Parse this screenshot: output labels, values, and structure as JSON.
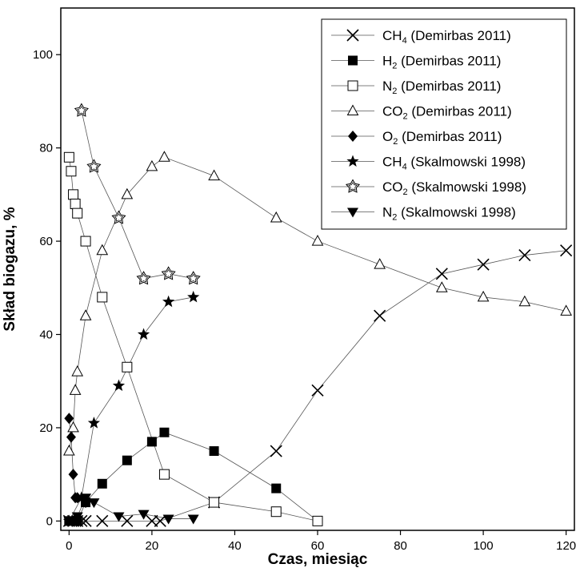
{
  "chart_data": {
    "type": "line",
    "xlabel": "Czas, miesiąc",
    "ylabel": "Skład biogazu, %",
    "xlim": [
      -2,
      122
    ],
    "ylim": [
      -2,
      110
    ],
    "x_ticks": [
      0,
      20,
      40,
      60,
      80,
      100,
      120
    ],
    "y_ticks": [
      0,
      20,
      40,
      60,
      80,
      100
    ],
    "x_tick_labels": [
      "0",
      "20",
      "40",
      "60",
      "80",
      "100",
      "120"
    ],
    "y_tick_labels": [
      "0",
      "20",
      "40",
      "60",
      "80",
      "100"
    ],
    "grid": false,
    "legend_position": "top-right",
    "series": [
      {
        "name": "CH4 (Demirbas 2011)",
        "gas": "CH",
        "sub": "4",
        "source": " (Demirbas 2011)",
        "marker": "x",
        "points": [
          [
            0,
            0
          ],
          [
            1,
            0
          ],
          [
            2,
            0
          ],
          [
            3,
            0
          ],
          [
            4,
            0
          ],
          [
            8,
            0
          ],
          [
            14,
            0
          ],
          [
            20,
            0
          ],
          [
            22,
            0
          ],
          [
            35,
            4
          ],
          [
            50,
            15
          ],
          [
            60,
            28
          ],
          [
            75,
            44
          ],
          [
            90,
            53
          ],
          [
            100,
            55
          ],
          [
            110,
            57
          ],
          [
            120,
            58
          ]
        ]
      },
      {
        "name": "H2 (Demirbas 2011)",
        "gas": "H",
        "sub": "2",
        "source": " (Demirbas 2011)",
        "marker": "square-filled",
        "points": [
          [
            0,
            0
          ],
          [
            2,
            0
          ],
          [
            4,
            4
          ],
          [
            8,
            8
          ],
          [
            14,
            13
          ],
          [
            20,
            17
          ],
          [
            23,
            19
          ],
          [
            35,
            15
          ],
          [
            50,
            7
          ],
          [
            60,
            0
          ]
        ]
      },
      {
        "name": "N2 (Demirbas 2011)",
        "gas": "N",
        "sub": "2",
        "source": " (Demirbas 2011)",
        "marker": "square-open",
        "points": [
          [
            0,
            78
          ],
          [
            0.5,
            75
          ],
          [
            1,
            70
          ],
          [
            1.5,
            68
          ],
          [
            2,
            66
          ],
          [
            4,
            60
          ],
          [
            8,
            48
          ],
          [
            14,
            33
          ],
          [
            23,
            10
          ],
          [
            35,
            4
          ],
          [
            50,
            2
          ],
          [
            60,
            0
          ]
        ]
      },
      {
        "name": "CO2 (Demirbas 2011)",
        "gas": "CO",
        "sub": "2",
        "source": " (Demirbas 2011)",
        "marker": "triangle-open",
        "points": [
          [
            0,
            15
          ],
          [
            1,
            20
          ],
          [
            1.5,
            28
          ],
          [
            2,
            32
          ],
          [
            4,
            44
          ],
          [
            8,
            58
          ],
          [
            14,
            70
          ],
          [
            20,
            76
          ],
          [
            23,
            78
          ],
          [
            35,
            74
          ],
          [
            50,
            65
          ],
          [
            60,
            60
          ],
          [
            75,
            55
          ],
          [
            90,
            50
          ],
          [
            100,
            48
          ],
          [
            110,
            47
          ],
          [
            120,
            45
          ]
        ]
      },
      {
        "name": "O2 (Demirbas 2011)",
        "gas": "O",
        "sub": "2",
        "source": " (Demirbas 2011)",
        "marker": "diamond-filled",
        "points": [
          [
            0,
            22
          ],
          [
            0.5,
            18
          ],
          [
            1,
            10
          ],
          [
            1.5,
            5
          ],
          [
            2,
            5
          ],
          [
            4,
            4
          ]
        ]
      },
      {
        "name": "CH4 (Skalmowski 1998)",
        "gas": "CH",
        "sub": "4",
        "source": " (Skalmowski 1998)",
        "marker": "star-filled",
        "points": [
          [
            0,
            0
          ],
          [
            3,
            5
          ],
          [
            6,
            21
          ],
          [
            12,
            29
          ],
          [
            18,
            40
          ],
          [
            24,
            47
          ],
          [
            30,
            48
          ]
        ]
      },
      {
        "name": "CO2 (Skalmowski 1998)",
        "gas": "CO",
        "sub": "2",
        "source": " (Skalmowski 1998)",
        "marker": "star-open",
        "points": [
          [
            3,
            88
          ],
          [
            6,
            76
          ],
          [
            12,
            65
          ],
          [
            18,
            52
          ],
          [
            24,
            53
          ],
          [
            30,
            52
          ]
        ]
      },
      {
        "name": "N2 (Skalmowski 1998)",
        "gas": "N",
        "sub": "2",
        "source": " (Skalmowski 1998)",
        "marker": "triangle-down-filled",
        "points": [
          [
            0,
            0
          ],
          [
            2,
            1
          ],
          [
            4,
            5
          ],
          [
            6,
            4
          ],
          [
            12,
            1
          ],
          [
            18,
            1.5
          ],
          [
            24,
            0.5
          ],
          [
            30,
            0.5
          ]
        ]
      }
    ]
  }
}
